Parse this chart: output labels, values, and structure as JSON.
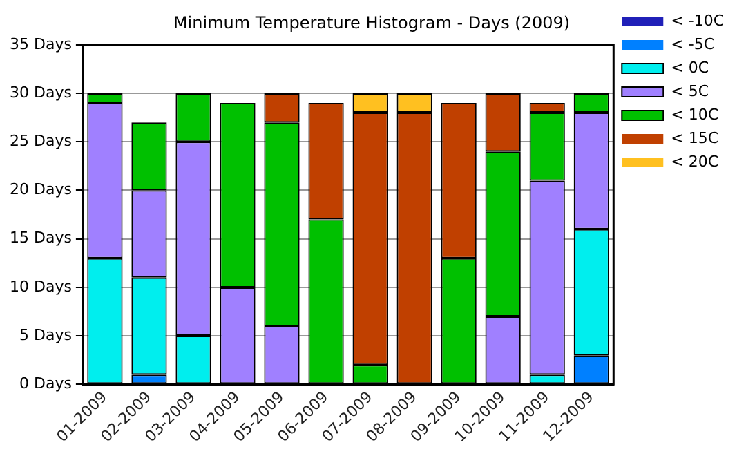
{
  "chart_data": {
    "type": "bar",
    "title": "Minimum Temperature Histogram - Days (2009)",
    "stacked": true,
    "categories": [
      "01-2009",
      "02-2009",
      "03-2009",
      "04-2009",
      "05-2009",
      "06-2009",
      "07-2009",
      "08-2009",
      "09-2009",
      "10-2009",
      "11-2009",
      "12-2009"
    ],
    "series": [
      {
        "name": "< -10C",
        "color": "#2020b8",
        "values": [
          0,
          0,
          0,
          0,
          0,
          0,
          0,
          0,
          0,
          0,
          0,
          0
        ]
      },
      {
        "name": "< -5C",
        "color": "#0080ff",
        "values": [
          0,
          1,
          0,
          0,
          0,
          0,
          0,
          0,
          0,
          0,
          0,
          3
        ]
      },
      {
        "name": "< 0C",
        "color": "#00eeee",
        "values": [
          13,
          10,
          5,
          0,
          0,
          0,
          0,
          0,
          0,
          0,
          1,
          13
        ]
      },
      {
        "name": "< 5C",
        "color": "#a080ff",
        "values": [
          16,
          9,
          20,
          10,
          6,
          0,
          0,
          0,
          0,
          7,
          20,
          12
        ]
      },
      {
        "name": "< 10C",
        "color": "#00c000",
        "values": [
          1,
          7,
          5,
          19,
          21,
          17,
          2,
          0,
          13,
          17,
          7,
          2
        ]
      },
      {
        "name": "< 15C",
        "color": "#c04000",
        "values": [
          0,
          0,
          0,
          0,
          3,
          12,
          26,
          28,
          16,
          6,
          1,
          0
        ]
      },
      {
        "name": "< 20C",
        "color": "#ffc020",
        "values": [
          0,
          0,
          0,
          0,
          0,
          0,
          2,
          2,
          0,
          0,
          0,
          0
        ]
      }
    ],
    "ylim": [
      0,
      35
    ],
    "yticks": [
      {
        "value": 0,
        "label": "0 Days"
      },
      {
        "value": 5,
        "label": "5 Days"
      },
      {
        "value": 10,
        "label": "10 Days"
      },
      {
        "value": 15,
        "label": "15 Days"
      },
      {
        "value": 20,
        "label": "20 Days"
      },
      {
        "value": 25,
        "label": "25 Days"
      },
      {
        "value": 30,
        "label": "30 Days"
      },
      {
        "value": 35,
        "label": "35 Days"
      }
    ],
    "grid": "y",
    "legend": "right"
  }
}
